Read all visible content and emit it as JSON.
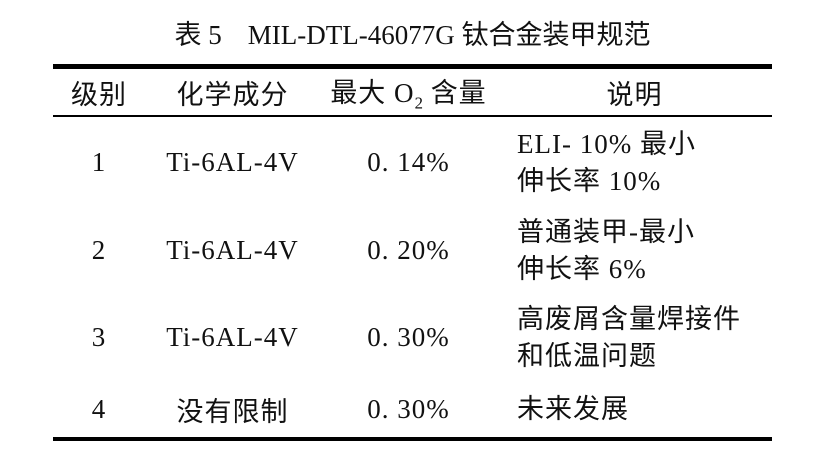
{
  "caption": {
    "prefix": "表 5",
    "title": "MIL-DTL-46077G 钛合金装甲规范"
  },
  "table": {
    "headers": {
      "grade": "级别",
      "composition": "化学成分",
      "max_o2_prefix": "最大 O",
      "max_o2_sub": "2",
      "max_o2_suffix": " 含量",
      "description": "说明"
    },
    "rows": [
      {
        "grade": "1",
        "composition": "Ti-6AL-4V",
        "max_o2": "0. 14%",
        "description": [
          "ELI- 10% 最小",
          "伸长率 10%"
        ]
      },
      {
        "grade": "2",
        "composition": "Ti-6AL-4V",
        "max_o2": "0. 20%",
        "description": [
          "普通装甲-最小",
          "伸长率 6%"
        ]
      },
      {
        "grade": "3",
        "composition": "Ti-6AL-4V",
        "max_o2": "0. 30%",
        "description": [
          "高废屑含量焊接件",
          "和低温问题"
        ]
      },
      {
        "grade": "4",
        "composition": "没有限制",
        "max_o2": "0. 30%",
        "description": [
          "未来发展"
        ]
      }
    ]
  }
}
